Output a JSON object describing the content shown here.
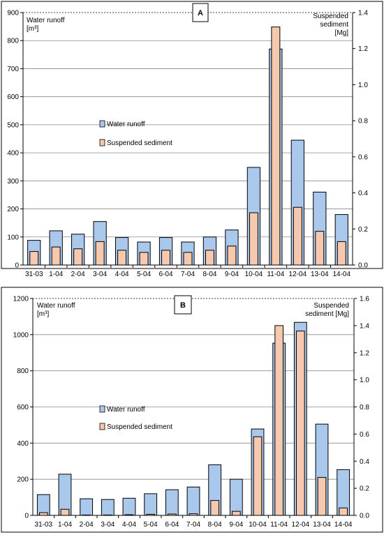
{
  "chart_data": [
    {
      "type": "bar",
      "panel_label": "A",
      "categories": [
        "31-03",
        "1-04",
        "2-04",
        "3-04",
        "4-04",
        "5-04",
        "6-04",
        "7-04",
        "8-04",
        "9-04",
        "10-04",
        "11-04",
        "12-04",
        "13-04",
        "14-04"
      ],
      "series": [
        {
          "name": "Water runoff",
          "axis": "left",
          "color": "#a9c8ec",
          "values": [
            88,
            122,
            110,
            155,
            98,
            82,
            98,
            82,
            100,
            125,
            348,
            770,
            445,
            260,
            180
          ]
        },
        {
          "name": "Suspended sediment",
          "axis": "right",
          "color": "#f6c8ad",
          "values": [
            0.075,
            0.1,
            0.09,
            0.13,
            0.082,
            0.07,
            0.082,
            0.07,
            0.082,
            0.105,
            0.29,
            1.32,
            0.32,
            0.187,
            0.13
          ]
        }
      ],
      "ylabel_left_lines": [
        "Water runoff",
        "[m³]"
      ],
      "ylabel_right_lines": [
        "Suspended",
        "sediment",
        "[Mg]"
      ],
      "ylim_left": [
        0,
        900
      ],
      "ylim_right": [
        0,
        1.4
      ],
      "yticks_left": [
        "0",
        "100",
        "200",
        "300",
        "400",
        "500",
        "600",
        "700",
        "800",
        "900"
      ],
      "yticks_right": [
        "0.0",
        "0.2",
        "0.4",
        "0.6",
        "0.8",
        "1.0",
        "1.2",
        "1.4"
      ],
      "grid": true,
      "legend_position": "center-left"
    },
    {
      "type": "bar",
      "panel_label": "B",
      "categories": [
        "31-03",
        "1-04",
        "2-04",
        "3-04",
        "4-04",
        "5-04",
        "6-04",
        "7-04",
        "8-04",
        "9-04",
        "10-04",
        "11-04",
        "12-04",
        "13-04",
        "14-04"
      ],
      "series": [
        {
          "name": "Water runoff",
          "axis": "left",
          "color": "#a9c8ec",
          "values": [
            115,
            228,
            92,
            88,
            95,
            120,
            142,
            157,
            280,
            200,
            478,
            953,
            1068,
            505,
            253
          ]
        },
        {
          "name": "Suspended sediment",
          "axis": "right",
          "color": "#f6c8ad",
          "values": [
            0.02,
            0.045,
            0.003,
            0.003,
            0.005,
            0.008,
            0.01,
            0.012,
            0.11,
            0.03,
            0.58,
            1.4,
            1.36,
            0.28,
            0.055
          ]
        }
      ],
      "ylabel_left_lines": [
        "Water runoff",
        "[m³]"
      ],
      "ylabel_right_lines": [
        "Suspended",
        "sediment [Mg]"
      ],
      "ylim_left": [
        0,
        1200
      ],
      "ylim_right": [
        0,
        1.6
      ],
      "yticks_left": [
        "0",
        "200",
        "400",
        "600",
        "800",
        "1000",
        "1200"
      ],
      "yticks_right": [
        "0.0",
        "0.2",
        "0.4",
        "0.6",
        "0.8",
        "1.0",
        "1.2",
        "1.4",
        "1.6"
      ],
      "grid": true,
      "legend_position": "center-left"
    }
  ]
}
